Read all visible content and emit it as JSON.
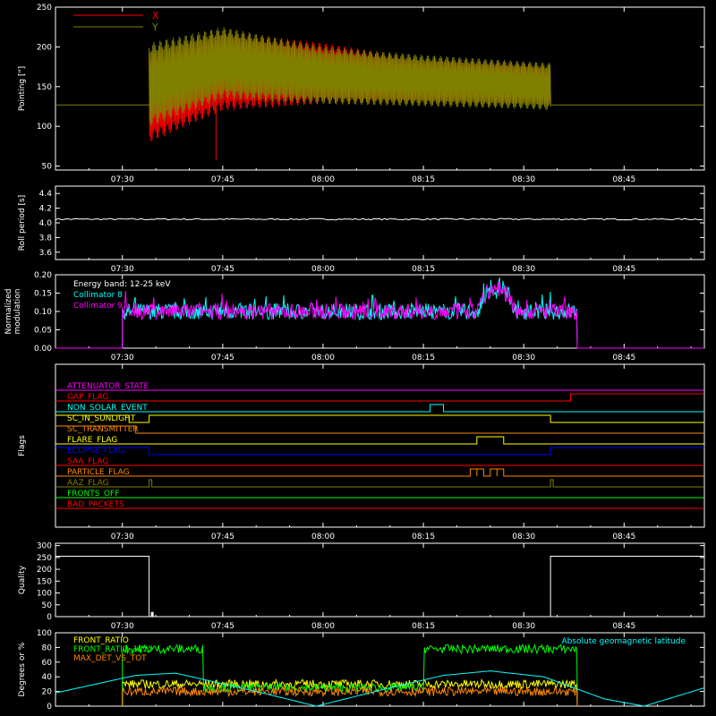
{
  "figure": {
    "background": "#000000",
    "axis_color": "#ffffff",
    "time_ticks": [
      "07:30",
      "07:45",
      "08:00",
      "08:15",
      "08:30",
      "08:45"
    ],
    "time_range": [
      "07:20",
      "08:57"
    ]
  },
  "chart_data": [
    {
      "type": "line",
      "panel": "pointing",
      "ylabel": "Pointing [\"]",
      "ylim": [
        45,
        250
      ],
      "yticks": [
        50,
        100,
        150,
        200,
        250
      ],
      "series": [
        {
          "name": "X",
          "color": "#ff0000"
        },
        {
          "name": "Y",
          "color": "#808000"
        }
      ],
      "baseline_value": 127,
      "data_window": [
        "07:34",
        "08:34"
      ],
      "x_band": {
        "x": [
          "07:34",
          "07:45",
          "08:00",
          "08:15",
          "08:30",
          "08:34"
        ],
        "high": [
          195,
          220,
          205,
          185,
          180,
          175
        ],
        "low": [
          80,
          120,
          128,
          128,
          128,
          128
        ]
      },
      "y_band": {
        "x": [
          "07:34",
          "07:45",
          "08:00",
          "08:15",
          "08:30",
          "08:34"
        ],
        "high": [
          205,
          225,
          200,
          190,
          182,
          180
        ],
        "low": [
          100,
          135,
          128,
          125,
          122,
          120
        ]
      },
      "spike": {
        "x": "07:44",
        "low": 58
      }
    },
    {
      "type": "line",
      "panel": "roll",
      "ylabel": "Roll period [s]",
      "ylim": [
        3.5,
        4.5
      ],
      "yticks": [
        "3.6",
        "3.8",
        "4.0",
        "4.2",
        "4.4"
      ],
      "series": [
        {
          "name": "",
          "color": "#ffffff",
          "value": 4.05
        }
      ]
    },
    {
      "type": "line",
      "panel": "modulation",
      "ylabel": "Normalized modulation",
      "ylim": [
        0,
        0.2
      ],
      "yticks": [
        "0.00",
        "0.05",
        "0.10",
        "0.15",
        "0.20"
      ],
      "annotation": "Energy band: 12-25 keV",
      "data_window": [
        "07:30",
        "08:38"
      ],
      "series": [
        {
          "name": "Collimator 8",
          "color": "#00ffff",
          "mean": 0.1
        },
        {
          "name": "Collimator 9",
          "color": "#ff00ff",
          "mean": 0.1
        }
      ],
      "bump": {
        "x": [
          "08:23",
          "08:29"
        ],
        "peak": 0.18
      }
    },
    {
      "type": "line",
      "panel": "flags",
      "ylabel": "Flags",
      "flags": [
        {
          "name": "ATTENUATOR_STATE",
          "color": "#ff00ff",
          "segments": []
        },
        {
          "name": "GAP_FLAG",
          "color": "#ff0000",
          "segments": [
            [
              "08:37",
              "08:57"
            ]
          ]
        },
        {
          "name": "NON_SOLAR_EVENT",
          "color": "#00ffff",
          "segments": [
            [
              "08:16",
              "08:18"
            ]
          ]
        },
        {
          "name": "SC_IN_SUNLIGHT",
          "color": "#ffff00",
          "segments": [
            [
              "07:20",
              "07:31"
            ],
            [
              "07:34",
              "08:34"
            ]
          ]
        },
        {
          "name": "SC_TRANSMITTER",
          "color": "#ff8800",
          "segments": [
            [
              "07:20",
              "07:32"
            ]
          ]
        },
        {
          "name": "FLARE_FLAG",
          "color": "#ffff00",
          "segments": [
            [
              "08:23",
              "08:27"
            ]
          ]
        },
        {
          "name": "ECLIPSE_FLAG",
          "color": "#0000ff",
          "segments": [
            [
              "07:20",
              "07:34"
            ],
            [
              "08:34",
              "08:57"
            ]
          ]
        },
        {
          "name": "SAA_FLAG",
          "color": "#ff0000",
          "segments": []
        },
        {
          "name": "PARTICLE_FLAG",
          "color": "#ff8800",
          "segments": [
            [
              "08:22",
              "08:23"
            ],
            [
              "08:23",
              "08:24"
            ],
            [
              "08:25",
              "08:26"
            ],
            [
              "08:26",
              "08:27"
            ]
          ]
        },
        {
          "name": "AAZ_FLAG",
          "color": "#808000",
          "segments": [
            [
              "07:34",
              "07:34"
            ],
            [
              "08:34",
              "08:34"
            ]
          ]
        },
        {
          "name": "FRONTS_OFF",
          "color": "#00ff00",
          "segments": []
        },
        {
          "name": "BAD_PACKETS",
          "color": "#ff0000",
          "segments": []
        }
      ]
    },
    {
      "type": "line",
      "panel": "quality",
      "ylabel": "Quality",
      "ylim": [
        0,
        310
      ],
      "yticks": [
        0,
        50,
        100,
        150,
        200,
        250,
        300
      ],
      "series": [
        {
          "name": "",
          "color": "#ffffff",
          "points": [
            [
              "07:20",
              255
            ],
            [
              "07:34",
              255
            ],
            [
              "07:34",
              0
            ],
            [
              "08:34",
              0
            ],
            [
              "08:34",
              255
            ],
            [
              "08:57",
              255
            ]
          ]
        }
      ]
    },
    {
      "type": "line",
      "panel": "ratios",
      "ylabel": "Degrees or %",
      "ylim": [
        0,
        100
      ],
      "yticks": [
        0,
        20,
        40,
        60,
        80,
        100
      ],
      "annotation": "Absolute geomagnetic latitude",
      "annotation_color": "#00ffff",
      "data_window": [
        "07:30",
        "08:38"
      ],
      "series": [
        {
          "name": "FRONT_RATIO",
          "color": "#ffff00",
          "level": 30
        },
        {
          "name": "FRONT_RATIO_1225",
          "color": "#00ff00",
          "level": 25,
          "high_level": 78,
          "high_windows": [
            [
              "07:30",
              "07:42"
            ],
            [
              "08:15",
              "08:38"
            ]
          ]
        },
        {
          "name": "MAX_DET_VS_TOT",
          "color": "#ff8800",
          "level": 20
        },
        {
          "name": "",
          "color": "#00ffff",
          "points": [
            [
              "07:20",
              18
            ],
            [
              "07:32",
              42
            ],
            [
              "07:38",
              45
            ],
            [
              "07:50",
              20
            ],
            [
              "07:59",
              0
            ],
            [
              "08:10",
              25
            ],
            [
              "08:18",
              42
            ],
            [
              "08:25",
              48
            ],
            [
              "08:33",
              40
            ],
            [
              "08:42",
              10
            ],
            [
              "08:48",
              0
            ],
            [
              "08:57",
              25
            ]
          ]
        }
      ]
    }
  ]
}
